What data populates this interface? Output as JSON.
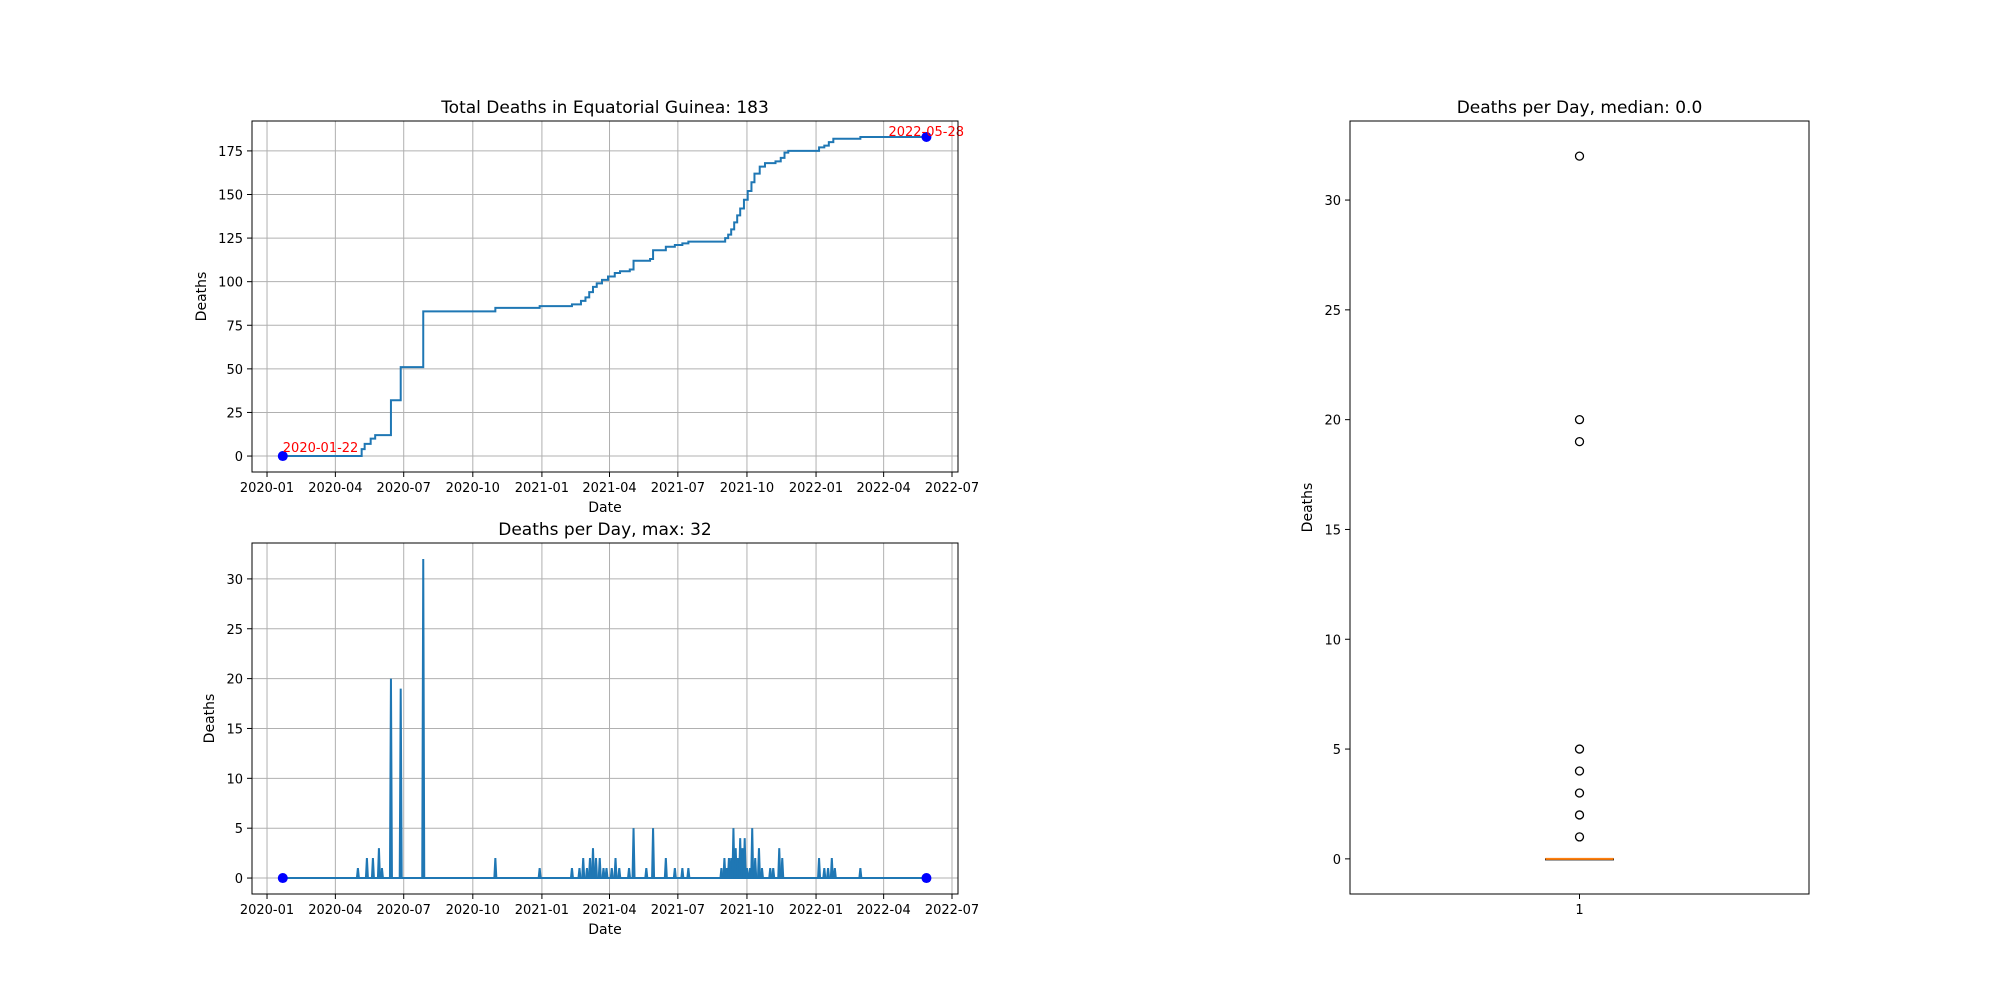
{
  "colors": {
    "line": "#1f77b4",
    "endpoint": "#0000ff",
    "annotation": "#ff0000",
    "median": "#ff7f0e",
    "grid": "#b0b0b0",
    "axis": "#000000"
  },
  "chart_data": [
    {
      "id": "total",
      "type": "line",
      "step": true,
      "title": "Total Deaths in Equatorial Guinea: 183",
      "xlabel": "Date",
      "ylabel": "Deaths",
      "xlim": [
        "2019-12-12",
        "2022-07-09"
      ],
      "ylim": [
        -9.15,
        192.15
      ],
      "xticks": [
        "2020-01",
        "2020-04",
        "2020-07",
        "2020-10",
        "2021-01",
        "2021-04",
        "2021-07",
        "2021-10",
        "2022-01",
        "2022-04",
        "2022-07"
      ],
      "yticks": [
        0,
        25,
        50,
        75,
        100,
        125,
        150,
        175
      ],
      "grid": true,
      "annotations": [
        {
          "date": "2020-01-22",
          "value": 0,
          "text": "2020-01-22"
        },
        {
          "date": "2022-05-28",
          "value": 183,
          "text": "2022-05-28"
        }
      ],
      "series": [
        {
          "points": [
            [
              "2020-01-22",
              0
            ],
            [
              "2020-05-01",
              0
            ],
            [
              "2020-05-06",
              4
            ],
            [
              "2020-05-10",
              7
            ],
            [
              "2020-05-18",
              10
            ],
            [
              "2020-05-24",
              12
            ],
            [
              "2020-06-14",
              32
            ],
            [
              "2020-06-27",
              51
            ],
            [
              "2020-07-27",
              83
            ],
            [
              "2020-10-31",
              85
            ],
            [
              "2020-12-29",
              86
            ],
            [
              "2021-02-10",
              87
            ],
            [
              "2021-02-22",
              89
            ],
            [
              "2021-02-28",
              91
            ],
            [
              "2021-03-05",
              94
            ],
            [
              "2021-03-10",
              97
            ],
            [
              "2021-03-15",
              99
            ],
            [
              "2021-03-22",
              101
            ],
            [
              "2021-03-30",
              103
            ],
            [
              "2021-04-08",
              105
            ],
            [
              "2021-04-15",
              106
            ],
            [
              "2021-04-28",
              107
            ],
            [
              "2021-05-03",
              112
            ],
            [
              "2021-05-25",
              113
            ],
            [
              "2021-05-29",
              118
            ],
            [
              "2021-06-15",
              120
            ],
            [
              "2021-06-27",
              121
            ],
            [
              "2021-07-07",
              122
            ],
            [
              "2021-07-15",
              123
            ],
            [
              "2021-08-28",
              123
            ],
            [
              "2021-09-02",
              125
            ],
            [
              "2021-09-06",
              127
            ],
            [
              "2021-09-10",
              130
            ],
            [
              "2021-09-14",
              134
            ],
            [
              "2021-09-18",
              138
            ],
            [
              "2021-09-22",
              142
            ],
            [
              "2021-09-27",
              147
            ],
            [
              "2021-10-02",
              152
            ],
            [
              "2021-10-07",
              157
            ],
            [
              "2021-10-11",
              162
            ],
            [
              "2021-10-18",
              166
            ],
            [
              "2021-10-25",
              168
            ],
            [
              "2021-11-08",
              169
            ],
            [
              "2021-11-15",
              171
            ],
            [
              "2021-11-20",
              174
            ],
            [
              "2021-11-25",
              175
            ],
            [
              "2022-01-05",
              177
            ],
            [
              "2022-01-12",
              178
            ],
            [
              "2022-01-18",
              180
            ],
            [
              "2022-01-24",
              182
            ],
            [
              "2022-03-01",
              183
            ],
            [
              "2022-05-28",
              183
            ]
          ]
        }
      ]
    },
    {
      "id": "daily",
      "type": "line",
      "title": "Deaths per Day, max: 32",
      "xlabel": "Date",
      "ylabel": "Deaths",
      "xlim": [
        "2019-12-12",
        "2022-07-09"
      ],
      "ylim": [
        -1.6,
        33.6
      ],
      "xticks": [
        "2020-01",
        "2020-04",
        "2020-07",
        "2020-10",
        "2021-01",
        "2021-04",
        "2021-07",
        "2021-10",
        "2022-01",
        "2022-04",
        "2022-07"
      ],
      "yticks": [
        0,
        5,
        10,
        15,
        20,
        25,
        30
      ],
      "grid": true,
      "range": [
        "2020-01-22",
        "2022-05-28"
      ],
      "series": [
        {
          "spikes": [
            [
              "2020-05-01",
              1
            ],
            [
              "2020-05-13",
              2
            ],
            [
              "2020-05-21",
              2
            ],
            [
              "2020-05-29",
              3
            ],
            [
              "2020-06-02",
              1
            ],
            [
              "2020-06-14",
              20
            ],
            [
              "2020-06-27",
              19
            ],
            [
              "2020-07-27",
              32
            ],
            [
              "2020-10-31",
              2
            ],
            [
              "2020-12-29",
              1
            ],
            [
              "2021-02-10",
              1
            ],
            [
              "2021-02-20",
              1
            ],
            [
              "2021-02-25",
              2
            ],
            [
              "2021-03-02",
              1
            ],
            [
              "2021-03-06",
              2
            ],
            [
              "2021-03-10",
              3
            ],
            [
              "2021-03-14",
              2
            ],
            [
              "2021-03-19",
              2
            ],
            [
              "2021-03-24",
              1
            ],
            [
              "2021-03-28",
              1
            ],
            [
              "2021-04-04",
              1
            ],
            [
              "2021-04-09",
              2
            ],
            [
              "2021-04-14",
              1
            ],
            [
              "2021-04-27",
              1
            ],
            [
              "2021-05-03",
              5
            ],
            [
              "2021-05-20",
              1
            ],
            [
              "2021-05-29",
              5
            ],
            [
              "2021-06-15",
              2
            ],
            [
              "2021-06-27",
              1
            ],
            [
              "2021-07-07",
              1
            ],
            [
              "2021-07-15",
              1
            ],
            [
              "2021-08-28",
              1
            ],
            [
              "2021-09-01",
              2
            ],
            [
              "2021-09-04",
              1
            ],
            [
              "2021-09-07",
              2
            ],
            [
              "2021-09-10",
              2
            ],
            [
              "2021-09-13",
              5
            ],
            [
              "2021-09-16",
              3
            ],
            [
              "2021-09-19",
              2
            ],
            [
              "2021-09-22",
              4
            ],
            [
              "2021-09-25",
              3
            ],
            [
              "2021-09-28",
              4
            ],
            [
              "2021-10-01",
              1
            ],
            [
              "2021-10-05",
              1
            ],
            [
              "2021-10-08",
              5
            ],
            [
              "2021-10-12",
              2
            ],
            [
              "2021-10-17",
              3
            ],
            [
              "2021-10-21",
              1
            ],
            [
              "2021-11-01",
              1
            ],
            [
              "2021-11-05",
              1
            ],
            [
              "2021-11-13",
              3
            ],
            [
              "2021-11-17",
              2
            ],
            [
              "2022-01-05",
              2
            ],
            [
              "2022-01-12",
              1
            ],
            [
              "2022-01-17",
              1
            ],
            [
              "2022-01-22",
              2
            ],
            [
              "2022-01-26",
              1
            ],
            [
              "2022-03-01",
              1
            ]
          ]
        }
      ]
    },
    {
      "id": "box",
      "type": "box",
      "title": "Deaths per Day, median: 0.0",
      "ylabel": "Deaths",
      "categories": [
        "1"
      ],
      "ylim": [
        -1.6,
        33.6
      ],
      "yticks": [
        0,
        5,
        10,
        15,
        20,
        25,
        30
      ],
      "grid": false,
      "median": 0.0,
      "q1": 0,
      "q3": 0,
      "whisker_low": 0,
      "whisker_high": 0,
      "outliers": [
        1,
        2,
        3,
        4,
        5,
        19,
        20,
        32
      ]
    }
  ]
}
